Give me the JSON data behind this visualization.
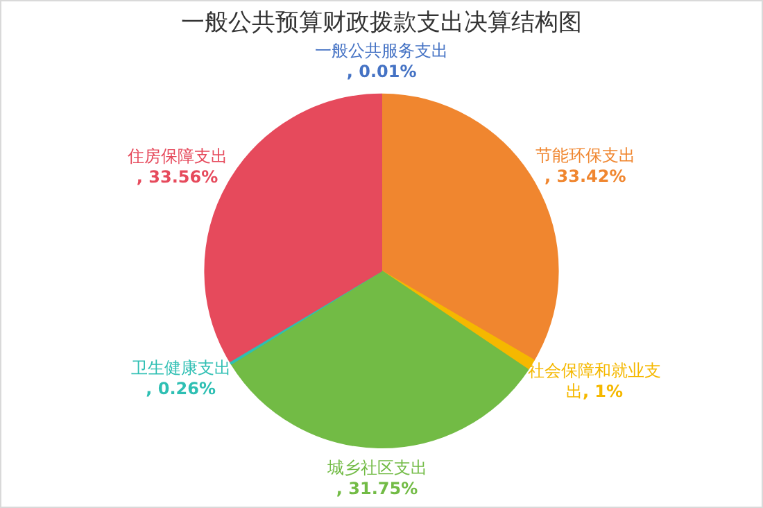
{
  "chart_data": {
    "type": "pie",
    "title": "一般公共预算财政拨款支出决算结构图",
    "categories": [
      "一般公共服务支出",
      "节能环保支出",
      "社会保障和就业支出",
      "城乡社区支出",
      "卫生健康支出",
      "住房保障支出"
    ],
    "values": [
      0.01,
      33.42,
      1,
      31.75,
      0.26,
      33.56
    ],
    "value_labels": [
      ", 0.01%",
      ", 33.42%",
      ", 1%",
      ", 31.75%",
      ", 0.26%",
      ", 33.56%"
    ],
    "colors": [
      "#4472c4",
      "#f0862f",
      "#f5b800",
      "#72bb45",
      "#2ebfb3",
      "#e64a5c"
    ],
    "legend": false
  }
}
